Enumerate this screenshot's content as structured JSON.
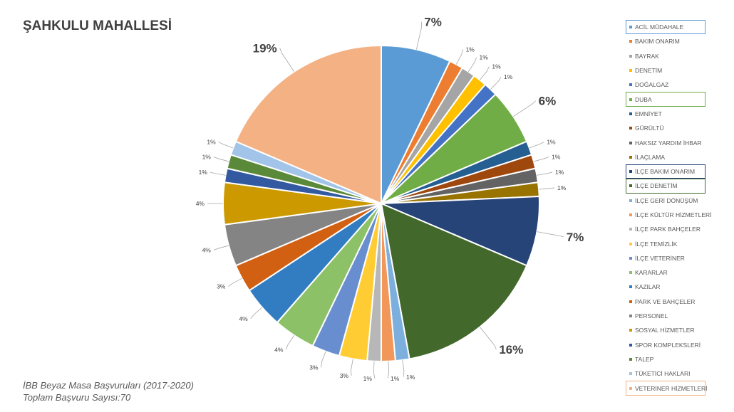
{
  "title": "ŞAHKULU MAHALLESİ",
  "footer": {
    "line1": "İBB Beyaz Masa Başvuruları (2017-2020)",
    "line2": "Toplam Başvuru Sayısı:70"
  },
  "chart_data": {
    "type": "pie",
    "total": 70,
    "legend_position": "right",
    "slices": [
      {
        "label": "ACİL MÜDAHALE",
        "value": 5,
        "pct": "7%",
        "color": "#5B9BD5",
        "highlight": true,
        "big": true
      },
      {
        "label": "BAKIM ONARIM",
        "value": 1,
        "pct": "1%",
        "color": "#ED7D31"
      },
      {
        "label": "BAYRAK",
        "value": 1,
        "pct": "1%",
        "color": "#A5A5A5"
      },
      {
        "label": "DENETİM",
        "value": 1,
        "pct": "1%",
        "color": "#FFC000"
      },
      {
        "label": "DOĞALGAZ",
        "value": 1,
        "pct": "1%",
        "color": "#4472C4"
      },
      {
        "label": "DUBA",
        "value": 4,
        "pct": "6%",
        "color": "#70AD47",
        "highlight": true,
        "big": true
      },
      {
        "label": "EMNİYET",
        "value": 1,
        "pct": "1%",
        "color": "#255E91"
      },
      {
        "label": "GÜRÜLTÜ",
        "value": 1,
        "pct": "1%",
        "color": "#9E480E"
      },
      {
        "label": "HAKSIZ YARDIM İHBAR",
        "value": 1,
        "pct": "1%",
        "color": "#636363"
      },
      {
        "label": "İLAÇLAMA",
        "value": 1,
        "pct": "1%",
        "color": "#997300"
      },
      {
        "label": "İLÇE BAKIM ONARIM",
        "value": 5,
        "pct": "7%",
        "color": "#264478",
        "highlight": true,
        "big": true
      },
      {
        "label": "İLÇE DENETİM",
        "value": 11,
        "pct": "16%",
        "color": "#43682B",
        "highlight": true,
        "big": true
      },
      {
        "label": "İLÇE GERİ DÖNÜŞÜM",
        "value": 1,
        "pct": "1%",
        "color": "#7CAFDD"
      },
      {
        "label": "İLÇE KÜLTÜR HİZMETLERİ",
        "value": 1,
        "pct": "1%",
        "color": "#F1975A"
      },
      {
        "label": "İLÇE PARK BAHÇELER",
        "value": 1,
        "pct": "1%",
        "color": "#B7B7B7"
      },
      {
        "label": "İLÇE TEMİZLİK",
        "value": 2,
        "pct": "3%",
        "color": "#FFCD33"
      },
      {
        "label": "İLÇE VETERİNER",
        "value": 2,
        "pct": "3%",
        "color": "#698ED0"
      },
      {
        "label": "KARARLAR",
        "value": 3,
        "pct": "4%",
        "color": "#8CC168"
      },
      {
        "label": "KAZILAR",
        "value": 3,
        "pct": "4%",
        "color": "#327DC2"
      },
      {
        "label": "PARK VE BAHÇELER",
        "value": 2,
        "pct": "3%",
        "color": "#D26012"
      },
      {
        "label": "PERSONEL",
        "value": 3,
        "pct": "4%",
        "color": "#848484"
      },
      {
        "label": "SOSYAL HİZMETLER",
        "value": 3,
        "pct": "4%",
        "color": "#CC9A00"
      },
      {
        "label": "SPOR KOMPLEKSLERİ",
        "value": 1,
        "pct": "1%",
        "color": "#335AA1"
      },
      {
        "label": "TALEP",
        "value": 1,
        "pct": "1%",
        "color": "#5A8A39"
      },
      {
        "label": "TÜKETİCİ HAKLARI",
        "value": 1,
        "pct": "1%",
        "color": "#A2C4E9"
      },
      {
        "label": "VETERİNER HİZMETLERİ",
        "value": 13,
        "pct": "19%",
        "color": "#F4B183",
        "highlight": true,
        "big": true
      }
    ]
  }
}
